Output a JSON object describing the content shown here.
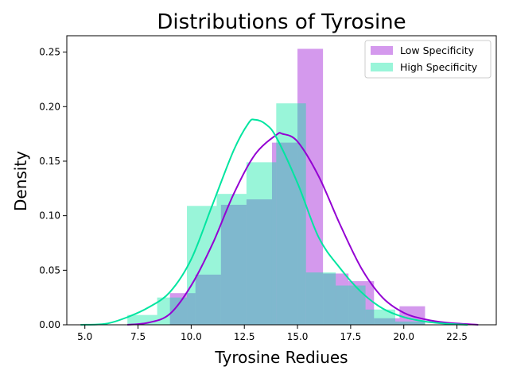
{
  "chart_data": {
    "type": "histogram",
    "title": "Distributions of Tyrosine",
    "xlabel": "Tyrosine Rediues",
    "ylabel": "Density",
    "xlim": [
      4.15,
      24.35
    ],
    "ylim": [
      0,
      0.265
    ],
    "xticks": [
      "5.0",
      "7.5",
      "10.0",
      "12.5",
      "15.0",
      "17.5",
      "20.0",
      "22.5"
    ],
    "yticks": [
      "0.00",
      "0.05",
      "0.10",
      "0.15",
      "0.20",
      "0.25"
    ],
    "legend_position": "top-right",
    "grid": false,
    "series": [
      {
        "name": "Low Specificity",
        "color": "#9400D3",
        "bins": [
          {
            "x0": 9.0,
            "x1": 10.2,
            "y": 0.029
          },
          {
            "x0": 10.2,
            "x1": 11.4,
            "y": 0.046
          },
          {
            "x0": 11.4,
            "x1": 12.6,
            "y": 0.11
          },
          {
            "x0": 12.6,
            "x1": 13.8,
            "y": 0.115
          },
          {
            "x0": 13.8,
            "x1": 15.0,
            "y": 0.167
          },
          {
            "x0": 15.0,
            "x1": 16.2,
            "y": 0.253
          },
          {
            "x0": 16.2,
            "x1": 17.4,
            "y": 0.047
          },
          {
            "x0": 17.4,
            "x1": 18.6,
            "y": 0.04
          },
          {
            "x0": 18.6,
            "x1": 19.8,
            "y": 0.006
          },
          {
            "x0": 19.8,
            "x1": 21.0,
            "y": 0.017
          }
        ],
        "kde": [
          [
            7.0,
            0.0
          ],
          [
            8.0,
            0.002
          ],
          [
            9.0,
            0.01
          ],
          [
            10.0,
            0.036
          ],
          [
            11.0,
            0.074
          ],
          [
            12.0,
            0.12
          ],
          [
            13.0,
            0.156
          ],
          [
            14.0,
            0.174
          ],
          [
            14.3,
            0.175
          ],
          [
            15.0,
            0.168
          ],
          [
            16.0,
            0.136
          ],
          [
            17.0,
            0.092
          ],
          [
            18.0,
            0.052
          ],
          [
            19.0,
            0.025
          ],
          [
            20.0,
            0.011
          ],
          [
            21.0,
            0.005
          ],
          [
            22.0,
            0.002
          ],
          [
            23.5,
            0.0
          ]
        ]
      },
      {
        "name": "High Specificity",
        "color": "#00E5A0",
        "bins": [
          {
            "x0": 7.0,
            "x1": 8.4,
            "y": 0.009
          },
          {
            "x0": 8.4,
            "x1": 9.8,
            "y": 0.025
          },
          {
            "x0": 9.8,
            "x1": 11.2,
            "y": 0.109
          },
          {
            "x0": 11.2,
            "x1": 12.6,
            "y": 0.12
          },
          {
            "x0": 12.6,
            "x1": 14.0,
            "y": 0.149
          },
          {
            "x0": 14.0,
            "x1": 15.4,
            "y": 0.203
          },
          {
            "x0": 15.4,
            "x1": 16.8,
            "y": 0.048
          },
          {
            "x0": 16.8,
            "x1": 18.2,
            "y": 0.036
          },
          {
            "x0": 18.2,
            "x1": 19.6,
            "y": 0.014
          },
          {
            "x0": 19.6,
            "x1": 21.0,
            "y": 0.003
          }
        ],
        "kde": [
          [
            4.8,
            0.0
          ],
          [
            6.0,
            0.001
          ],
          [
            7.0,
            0.007
          ],
          [
            8.0,
            0.016
          ],
          [
            9.0,
            0.03
          ],
          [
            10.0,
            0.06
          ],
          [
            11.0,
            0.11
          ],
          [
            12.0,
            0.16
          ],
          [
            12.7,
            0.185
          ],
          [
            13.0,
            0.188
          ],
          [
            13.5,
            0.184
          ],
          [
            14.0,
            0.172
          ],
          [
            15.0,
            0.13
          ],
          [
            16.0,
            0.08
          ],
          [
            17.0,
            0.052
          ],
          [
            18.0,
            0.03
          ],
          [
            19.0,
            0.015
          ],
          [
            20.0,
            0.007
          ],
          [
            21.0,
            0.003
          ],
          [
            22.0,
            0.001
          ],
          [
            23.0,
            0.0
          ]
        ]
      }
    ]
  }
}
